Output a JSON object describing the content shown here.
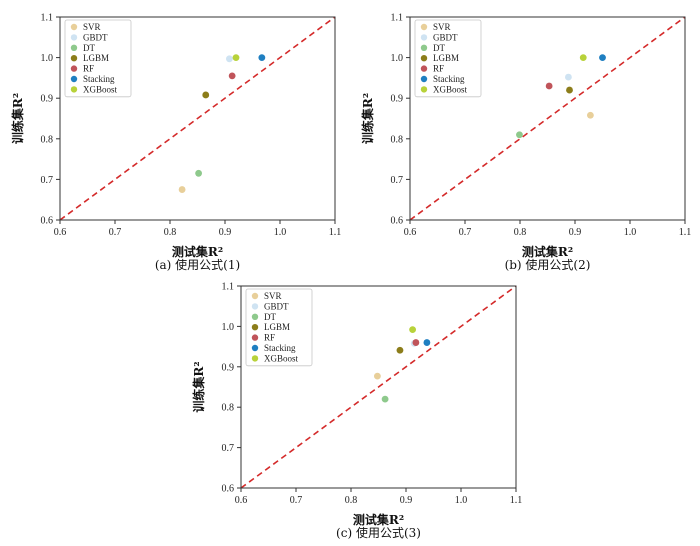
{
  "chart_data": [
    {
      "type": "scatter",
      "caption": "(a)  使用公式(1)",
      "xlabel": "测试集R²",
      "ylabel": "训练集R²",
      "xlim": [
        0.6,
        1.1
      ],
      "ylim": [
        0.6,
        1.1
      ],
      "xticks": [
        "0.6",
        "0.7",
        "0.8",
        "0.9",
        "1.0",
        "1.1"
      ],
      "yticks": [
        "0.6",
        "0.7",
        "0.8",
        "0.9",
        "1.0",
        "1.1"
      ],
      "reference_line": "y = x",
      "legend_position": "top-left",
      "series": [
        {
          "name": "SVR",
          "color": "#e8cf9a",
          "x": 0.822,
          "y": 0.675
        },
        {
          "name": "GBDT",
          "color": "#cfe3f2",
          "x": 0.908,
          "y": 0.997
        },
        {
          "name": "DT",
          "color": "#8ec98c",
          "x": 0.852,
          "y": 0.715
        },
        {
          "name": "LGBM",
          "color": "#8c7d1a",
          "x": 0.865,
          "y": 0.908
        },
        {
          "name": "RF",
          "color": "#c0545a",
          "x": 0.913,
          "y": 0.955
        },
        {
          "name": "Stacking",
          "color": "#1f7fc1",
          "x": 0.967,
          "y": 1.0
        },
        {
          "name": "XGBoost",
          "color": "#b8d23a",
          "x": 0.92,
          "y": 1.0
        }
      ]
    },
    {
      "type": "scatter",
      "caption": "(b)  使用公式(2)",
      "xlabel": "测试集R²",
      "ylabel": "训练集R²",
      "xlim": [
        0.6,
        1.1
      ],
      "ylim": [
        0.6,
        1.1
      ],
      "xticks": [
        "0.6",
        "0.7",
        "0.8",
        "0.9",
        "1.0",
        "1.1"
      ],
      "yticks": [
        "0.6",
        "0.7",
        "0.8",
        "0.9",
        "1.0",
        "1.1"
      ],
      "reference_line": "y = x",
      "legend_position": "top-left",
      "series": [
        {
          "name": "SVR",
          "color": "#e8cf9a",
          "x": 0.928,
          "y": 0.858
        },
        {
          "name": "GBDT",
          "color": "#cfe3f2",
          "x": 0.888,
          "y": 0.952
        },
        {
          "name": "DT",
          "color": "#8ec98c",
          "x": 0.799,
          "y": 0.81
        },
        {
          "name": "LGBM",
          "color": "#8c7d1a",
          "x": 0.89,
          "y": 0.92
        },
        {
          "name": "RF",
          "color": "#c0545a",
          "x": 0.853,
          "y": 0.93
        },
        {
          "name": "Stacking",
          "color": "#1f7fc1",
          "x": 0.95,
          "y": 1.0
        },
        {
          "name": "XGBoost",
          "color": "#b8d23a",
          "x": 0.915,
          "y": 1.0
        }
      ]
    },
    {
      "type": "scatter",
      "caption": "(c)  使用公式(3)",
      "xlabel": "测试集R²",
      "ylabel": "训练集R²",
      "xlim": [
        0.6,
        1.1
      ],
      "ylim": [
        0.6,
        1.1
      ],
      "xticks": [
        "0.6",
        "0.7",
        "0.8",
        "0.9",
        "1.0",
        "1.1"
      ],
      "yticks": [
        "0.6",
        "0.7",
        "0.8",
        "0.9",
        "1.0",
        "1.1"
      ],
      "reference_line": "y = x",
      "legend_position": "top-left",
      "series": [
        {
          "name": "SVR",
          "color": "#e8cf9a",
          "x": 0.848,
          "y": 0.877
        },
        {
          "name": "GBDT",
          "color": "#cfe3f2",
          "x": 0.915,
          "y": 0.958
        },
        {
          "name": "DT",
          "color": "#8ec98c",
          "x": 0.862,
          "y": 0.82
        },
        {
          "name": "LGBM",
          "color": "#8c7d1a",
          "x": 0.889,
          "y": 0.941
        },
        {
          "name": "RF",
          "color": "#c0545a",
          "x": 0.918,
          "y": 0.96
        },
        {
          "name": "Stacking",
          "color": "#1f7fc1",
          "x": 0.938,
          "y": 0.96
        },
        {
          "name": "XGBoost",
          "color": "#b8d23a",
          "x": 0.912,
          "y": 0.992
        }
      ]
    }
  ]
}
